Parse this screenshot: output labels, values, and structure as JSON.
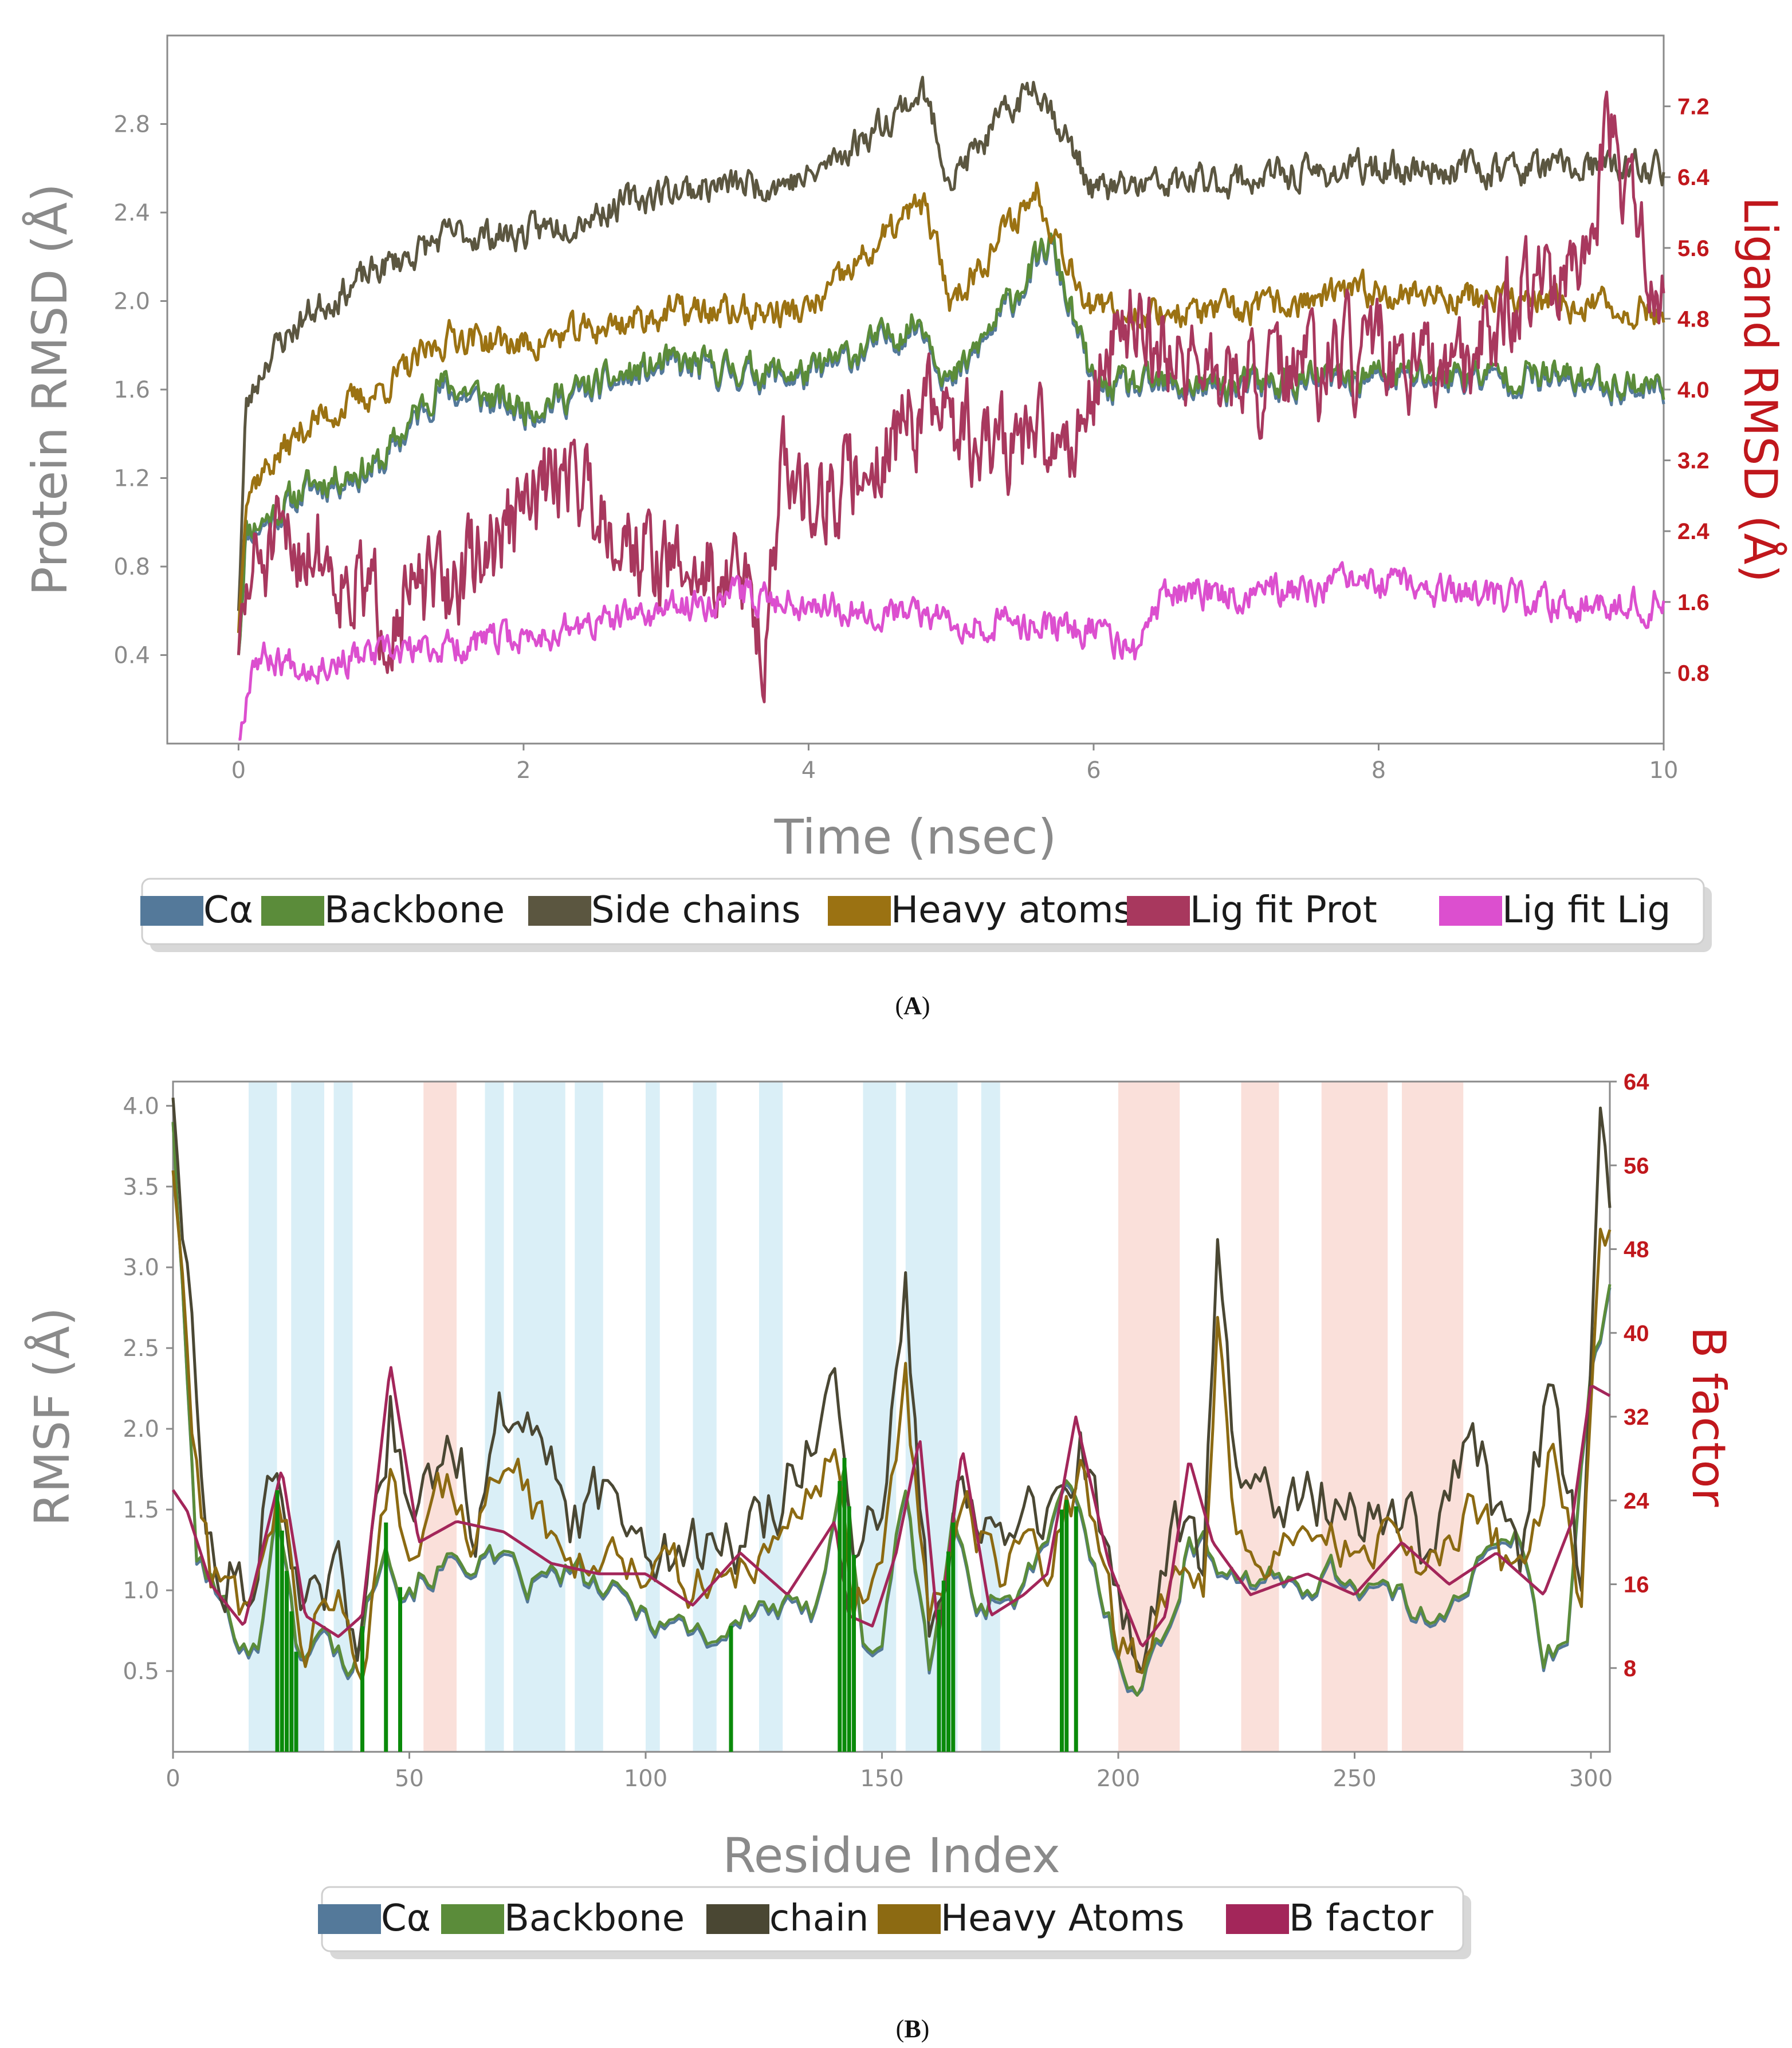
{
  "figure": {
    "panel_a_label": "A",
    "panel_b_label": "B"
  },
  "chart_data": [
    {
      "type": "line",
      "id": "A",
      "xlabel": "Time (nsec)",
      "ylabel": "Protein RMSD (Å)",
      "ylabel_right": "Ligand RMSD (Å)",
      "xlim": [
        -0.5,
        10.0
      ],
      "ylim": [
        0.0,
        3.2
      ],
      "ylim_right": [
        0.0,
        8.0
      ],
      "xticks": [
        "0",
        "2",
        "4",
        "6",
        "8",
        "10"
      ],
      "yticks": [
        "0.4",
        "0.8",
        "1.2",
        "1.6",
        "2.0",
        "2.4",
        "2.8"
      ],
      "yticks_right": [
        "0.8",
        "1.6",
        "2.4",
        "3.2",
        "4.0",
        "4.8",
        "5.6",
        "6.4",
        "7.2"
      ],
      "legend_position": "below",
      "series": [
        {
          "name": "Cα",
          "color": "#54799a",
          "axis": "left",
          "x": [
            0,
            0.05,
            0.2,
            0.5,
            1.0,
            1.4,
            2.0,
            3.0,
            4.0,
            4.8,
            5.0,
            5.7,
            6.0,
            7.0,
            8.0,
            9.0,
            10.0
          ],
          "values": [
            0.4,
            0.95,
            1.0,
            1.15,
            1.25,
            1.6,
            1.5,
            1.7,
            1.65,
            1.9,
            1.6,
            2.25,
            1.6,
            1.6,
            1.65,
            1.65,
            1.6
          ]
        },
        {
          "name": "Backbone",
          "color": "#5b8c3a",
          "axis": "left",
          "x": [
            0,
            0.05,
            0.2,
            0.5,
            1.0,
            1.4,
            2.0,
            3.0,
            4.0,
            4.8,
            5.0,
            5.7,
            6.0,
            7.0,
            8.0,
            9.0,
            10.0
          ],
          "values": [
            0.4,
            0.97,
            1.02,
            1.17,
            1.27,
            1.63,
            1.52,
            1.72,
            1.67,
            1.92,
            1.62,
            2.27,
            1.62,
            1.62,
            1.67,
            1.67,
            1.62
          ]
        },
        {
          "name": "Side chains",
          "color": "#5b5640",
          "axis": "left",
          "x": [
            0,
            0.05,
            0.2,
            0.5,
            1.0,
            1.5,
            2.0,
            3.0,
            4.0,
            4.8,
            5.0,
            5.6,
            6.0,
            7.0,
            8.0,
            9.0,
            10.0
          ],
          "values": [
            0.6,
            1.5,
            1.75,
            1.95,
            2.15,
            2.3,
            2.3,
            2.5,
            2.55,
            2.95,
            2.55,
            3.0,
            2.5,
            2.55,
            2.6,
            2.6,
            2.6
          ]
        },
        {
          "name": "Heavy atoms",
          "color": "#9b7212",
          "axis": "left",
          "x": [
            0,
            0.05,
            0.2,
            0.5,
            1.0,
            1.5,
            2.0,
            3.0,
            4.0,
            4.8,
            5.0,
            5.6,
            6.0,
            7.0,
            8.0,
            9.0,
            10.0
          ],
          "values": [
            0.5,
            1.15,
            1.25,
            1.45,
            1.6,
            1.85,
            1.8,
            1.95,
            1.95,
            2.45,
            2.0,
            2.5,
            1.95,
            1.95,
            2.05,
            2.0,
            1.95
          ]
        },
        {
          "name": "Lig fit Prot",
          "color": "#a8385e",
          "axis": "right",
          "x": [
            0,
            0.1,
            0.5,
            1.0,
            1.5,
            2.0,
            2.3,
            2.8,
            3.0,
            3.5,
            3.7,
            3.8,
            4.2,
            4.8,
            5.2,
            5.8,
            6.0,
            6.2,
            7.0,
            8.0,
            8.5,
            9.0,
            9.5,
            9.6,
            10.0
          ],
          "values": [
            1.0,
            2.0,
            2.3,
            1.5,
            1.8,
            2.6,
            3.2,
            2.2,
            2.0,
            1.9,
            1.2,
            3.0,
            2.8,
            3.8,
            3.4,
            3.4,
            4.0,
            4.8,
            4.0,
            4.4,
            4.0,
            5.2,
            5.2,
            7.0,
            4.8
          ]
        },
        {
          "name": "Lig fit Lig",
          "color": "#dc4fcf",
          "axis": "right",
          "x": [
            0,
            0.1,
            0.5,
            1.0,
            1.5,
            2.0,
            3.0,
            3.5,
            4.0,
            5.0,
            6.0,
            6.3,
            6.5,
            7.0,
            8.0,
            9.0,
            10.0
          ],
          "values": [
            0.0,
            1.0,
            0.9,
            1.0,
            1.1,
            1.2,
            1.5,
            1.7,
            1.6,
            1.4,
            1.3,
            1.0,
            1.7,
            1.7,
            1.8,
            1.6,
            1.6
          ]
        }
      ]
    },
    {
      "type": "line",
      "id": "B",
      "xlabel": "Residue Index",
      "ylabel": "RMSF (Å)",
      "ylabel_right": "B factor",
      "xlim": [
        0,
        304
      ],
      "ylim": [
        0.0,
        4.15
      ],
      "ylim_right": [
        0.0,
        64.0
      ],
      "xticks": [
        "0",
        "50",
        "100",
        "150",
        "200",
        "250",
        "300"
      ],
      "yticks": [
        "0.5",
        "1.0",
        "1.5",
        "2.0",
        "2.5",
        "3.0",
        "3.5",
        "4.0"
      ],
      "yticks_right": [
        "8",
        "16",
        "24",
        "32",
        "40",
        "48",
        "56",
        "64"
      ],
      "legend_position": "below",
      "helix_regions": [
        [
          16,
          22
        ],
        [
          25,
          32
        ],
        [
          34,
          38
        ],
        [
          66,
          70
        ],
        [
          72,
          83
        ],
        [
          85,
          91
        ],
        [
          100,
          103
        ],
        [
          110,
          115
        ],
        [
          124,
          129
        ],
        [
          146,
          153
        ],
        [
          155,
          166
        ],
        [
          171,
          175
        ]
      ],
      "strand_regions": [
        [
          53,
          60
        ],
        [
          200,
          213
        ],
        [
          226,
          234
        ],
        [
          243,
          257
        ],
        [
          260,
          273
        ]
      ],
      "ligand_contacts": [
        22,
        23,
        24,
        25,
        26,
        40,
        45,
        48,
        118,
        141,
        142,
        143,
        144,
        162,
        163,
        164,
        165,
        188,
        189,
        191
      ],
      "series": [
        {
          "name": "Cα",
          "color": "#54799a",
          "axis": "left",
          "x": [
            0,
            5,
            12,
            18,
            22,
            26,
            32,
            38,
            45,
            48,
            55,
            65,
            75,
            85,
            95,
            105,
            115,
            125,
            135,
            142,
            146,
            150,
            155,
            160,
            165,
            170,
            180,
            190,
            200,
            204,
            210,
            215,
            220,
            225,
            235,
            245,
            255,
            265,
            275,
            285,
            290,
            295,
            300,
            304
          ],
          "values": [
            3.9,
            1.2,
            0.8,
            0.6,
            1.6,
            0.6,
            0.7,
            0.5,
            1.4,
            1.0,
            1.1,
            1.2,
            1.0,
            1.1,
            0.9,
            0.8,
            0.7,
            0.9,
            0.8,
            1.8,
            0.6,
            0.7,
            1.6,
            0.5,
            1.4,
            0.9,
            1.0,
            1.6,
            0.6,
            0.4,
            0.7,
            1.3,
            1.2,
            1.1,
            1.0,
            1.1,
            1.0,
            0.8,
            1.1,
            1.3,
            0.6,
            0.7,
            2.4,
            2.8
          ]
        },
        {
          "name": "Backbone",
          "color": "#5b8c3a",
          "axis": "left",
          "x": [
            0,
            5,
            12,
            18,
            22,
            26,
            32,
            38,
            45,
            48,
            55,
            65,
            75,
            85,
            95,
            105,
            115,
            125,
            135,
            142,
            146,
            150,
            155,
            160,
            165,
            170,
            180,
            190,
            200,
            204,
            210,
            215,
            220,
            225,
            235,
            245,
            255,
            265,
            275,
            285,
            290,
            295,
            300,
            304
          ],
          "values": [
            3.9,
            1.22,
            0.82,
            0.62,
            1.62,
            0.62,
            0.72,
            0.52,
            1.42,
            1.02,
            1.12,
            1.22,
            1.02,
            1.12,
            0.92,
            0.82,
            0.72,
            0.92,
            0.82,
            1.82,
            0.62,
            0.72,
            1.62,
            0.52,
            1.42,
            0.92,
            1.02,
            1.62,
            0.62,
            0.42,
            0.72,
            1.32,
            1.22,
            1.12,
            1.02,
            1.12,
            1.02,
            0.82,
            1.12,
            1.32,
            0.62,
            0.72,
            2.42,
            2.82
          ]
        },
        {
          "name": "chain",
          "color": "#4a4733",
          "axis": "left",
          "x": [
            0,
            4,
            8,
            15,
            22,
            28,
            35,
            40,
            46,
            50,
            58,
            64,
            72,
            78,
            85,
            95,
            110,
            125,
            140,
            144,
            150,
            155,
            160,
            167,
            175,
            185,
            192,
            200,
            205,
            212,
            218,
            221,
            225,
            240,
            255,
            265,
            275,
            285,
            292,
            298,
            302,
            304
          ],
          "values": [
            4.05,
            2.6,
            1.3,
            1.0,
            1.95,
            0.8,
            1.0,
            0.7,
            2.1,
            1.3,
            2.0,
            1.5,
            2.3,
            1.7,
            1.4,
            1.6,
            1.2,
            1.4,
            2.3,
            1.1,
            1.4,
            2.75,
            0.9,
            1.8,
            1.3,
            1.4,
            1.9,
            0.8,
            0.55,
            1.4,
            1.1,
            3.25,
            1.6,
            1.6,
            1.6,
            1.2,
            1.9,
            1.2,
            2.35,
            1.0,
            3.95,
            3.5
          ]
        },
        {
          "name": "Heavy Atoms",
          "color": "#8c6a12",
          "axis": "left",
          "x": [
            0,
            4,
            8,
            15,
            22,
            28,
            35,
            40,
            46,
            50,
            58,
            64,
            72,
            78,
            85,
            95,
            110,
            125,
            140,
            144,
            150,
            155,
            160,
            167,
            175,
            185,
            192,
            200,
            205,
            212,
            218,
            221,
            225,
            240,
            255,
            265,
            275,
            285,
            292,
            298,
            302,
            304
          ],
          "values": [
            3.6,
            2.1,
            1.1,
            0.9,
            1.7,
            0.7,
            0.9,
            0.6,
            1.8,
            1.2,
            1.6,
            1.3,
            1.9,
            1.4,
            1.2,
            1.3,
            1.0,
            1.2,
            1.9,
            0.9,
            1.2,
            2.2,
            0.8,
            1.5,
            1.1,
            1.2,
            1.7,
            0.7,
            0.5,
            1.2,
            1.0,
            2.6,
            1.3,
            1.3,
            1.3,
            1.0,
            1.5,
            1.0,
            1.9,
            0.9,
            3.2,
            3.1
          ]
        },
        {
          "name": "B factor",
          "color": "#a3265a",
          "axis": "right",
          "x": [
            0,
            3,
            8,
            15,
            23,
            28,
            35,
            40,
            46,
            52,
            60,
            70,
            80,
            90,
            100,
            110,
            120,
            130,
            140,
            143,
            148,
            153,
            158,
            162,
            167,
            173,
            180,
            185,
            191,
            198,
            205,
            210,
            215,
            220,
            228,
            240,
            250,
            260,
            270,
            280,
            290,
            296,
            300,
            304
          ],
          "values": [
            25,
            23,
            16,
            12,
            27,
            13,
            11,
            13,
            37,
            20,
            22,
            21,
            18,
            17,
            17,
            14,
            19,
            15,
            22,
            13,
            12,
            19,
            30,
            11,
            29,
            13,
            15,
            17,
            32,
            18,
            10,
            13,
            28,
            20,
            15,
            17,
            15,
            20,
            16,
            19,
            15,
            22,
            35,
            34
          ]
        }
      ]
    }
  ]
}
